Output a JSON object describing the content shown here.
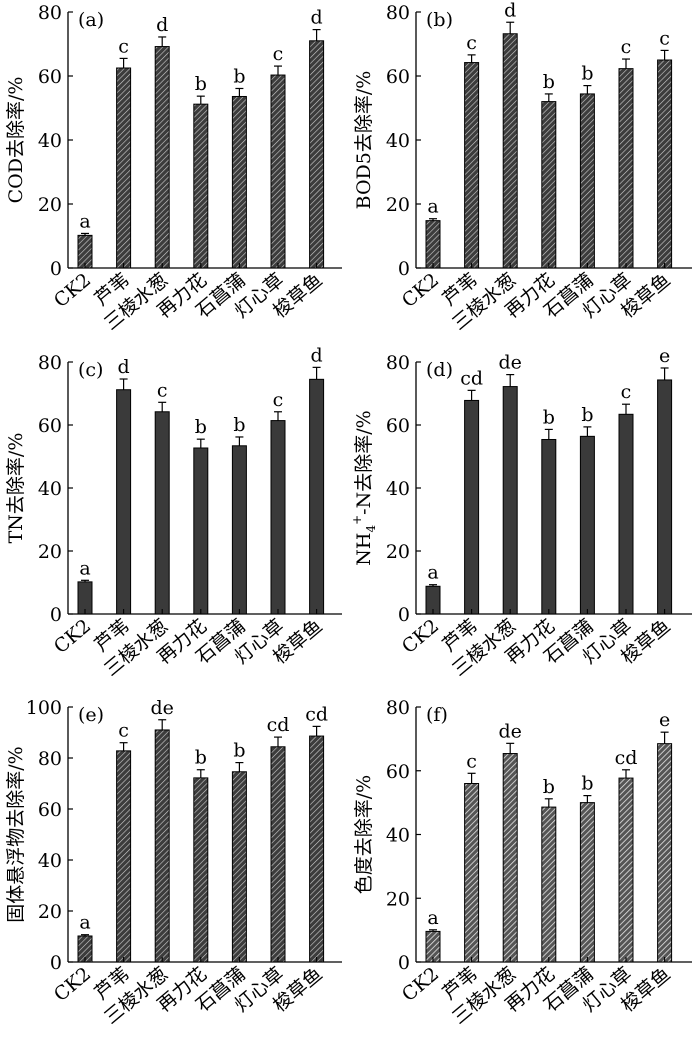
{
  "chart_data": [
    {
      "panel": "(a)",
      "type": "bar",
      "ylabel": "COD去除率/%",
      "ylim": [
        0,
        80
      ],
      "yticks": [
        0,
        20,
        40,
        60,
        80
      ],
      "categories": [
        "CK2",
        "芦苇",
        "三棱水葱",
        "再力花",
        "石菖蒲",
        "灯心草",
        "梭草鱼"
      ],
      "values": [
        10.2,
        62.5,
        69.2,
        51.2,
        53.6,
        60.3,
        71.0
      ],
      "errors": [
        0.6,
        3.0,
        3.0,
        2.5,
        2.5,
        2.8,
        3.5
      ],
      "letters": [
        "a",
        "c",
        "d",
        "b",
        "b",
        "c",
        "d"
      ],
      "fill": "hatched-dark"
    },
    {
      "panel": "(b)",
      "type": "bar",
      "ylabel": "BOD5去除率/%",
      "ylim": [
        0,
        80
      ],
      "yticks": [
        0,
        20,
        40,
        60,
        80
      ],
      "categories": [
        "CK2",
        "芦苇",
        "三棱水葱",
        "再力花",
        "石菖蒲",
        "灯心草",
        "梭草鱼"
      ],
      "values": [
        14.8,
        64.2,
        73.2,
        52.0,
        54.4,
        62.3,
        65.0
      ],
      "errors": [
        0.6,
        2.4,
        3.6,
        2.4,
        2.6,
        3.0,
        3.0
      ],
      "letters": [
        "a",
        "c",
        "d",
        "b",
        "b",
        "c",
        "c"
      ],
      "fill": "hatched-dark"
    },
    {
      "panel": "(c)",
      "type": "bar",
      "ylabel": "TN去除率/%",
      "ylim": [
        0,
        80
      ],
      "yticks": [
        0,
        20,
        40,
        60,
        80
      ],
      "categories": [
        "CK2",
        "芦苇",
        "三棱水葱",
        "再力花",
        "石菖蒲",
        "灯心草",
        "梭草鱼"
      ],
      "values": [
        10.2,
        71.2,
        64.2,
        52.7,
        53.4,
        61.4,
        74.5
      ],
      "errors": [
        0.5,
        3.4,
        3.0,
        2.8,
        2.8,
        2.8,
        3.8
      ],
      "letters": [
        "a",
        "d",
        "c",
        "b",
        "b",
        "c",
        "d"
      ],
      "fill": "solid"
    },
    {
      "panel": "(d)",
      "type": "bar",
      "ylabel_main": "NH",
      "ylabel_sub": "4",
      "ylabel_sup": "+",
      "ylabel_rest": "-N去除率/%",
      "ylim": [
        0,
        80
      ],
      "yticks": [
        0,
        20,
        40,
        60,
        80
      ],
      "categories": [
        "CK2",
        "芦苇",
        "三棱水葱",
        "再力花",
        "石菖蒲",
        "灯心草",
        "梭草鱼"
      ],
      "values": [
        8.8,
        67.8,
        72.2,
        55.4,
        56.4,
        63.4,
        74.3
      ],
      "errors": [
        0.5,
        3.2,
        3.8,
        3.2,
        3.0,
        3.2,
        3.8
      ],
      "letters": [
        "a",
        "cd",
        "de",
        "b",
        "b",
        "c",
        "e"
      ],
      "fill": "solid"
    },
    {
      "panel": "(e)",
      "type": "bar",
      "ylabel": "固体悬浮物去除率/%",
      "ylim": [
        0,
        100
      ],
      "yticks": [
        0,
        20,
        40,
        60,
        80,
        100
      ],
      "categories": [
        "CK2",
        "芦苇",
        "三棱水葱",
        "再力花",
        "石菖蒲",
        "灯心草",
        "梭草鱼"
      ],
      "values": [
        10.2,
        82.8,
        91.0,
        72.2,
        74.6,
        84.4,
        88.6
      ],
      "errors": [
        0.5,
        3.2,
        4.0,
        3.2,
        3.6,
        3.8,
        3.8
      ],
      "letters": [
        "a",
        "c",
        "de",
        "b",
        "b",
        "cd",
        "cd"
      ],
      "fill": "hatched-dark"
    },
    {
      "panel": "(f)",
      "type": "bar",
      "ylabel": "色度去除率/%",
      "ylim": [
        0,
        80
      ],
      "yticks": [
        0,
        20,
        40,
        60,
        80
      ],
      "categories": [
        "CK2",
        "芦苇",
        "三棱水葱",
        "再力花",
        "石菖蒲",
        "灯心草",
        "梭草鱼"
      ],
      "values": [
        9.6,
        56.0,
        65.4,
        48.6,
        50.0,
        57.7,
        68.5
      ],
      "errors": [
        0.5,
        3.2,
        3.2,
        2.6,
        2.2,
        2.6,
        3.6
      ],
      "letters": [
        "a",
        "c",
        "de",
        "b",
        "b",
        "cd",
        "e"
      ],
      "fill": "hatched-light"
    }
  ]
}
